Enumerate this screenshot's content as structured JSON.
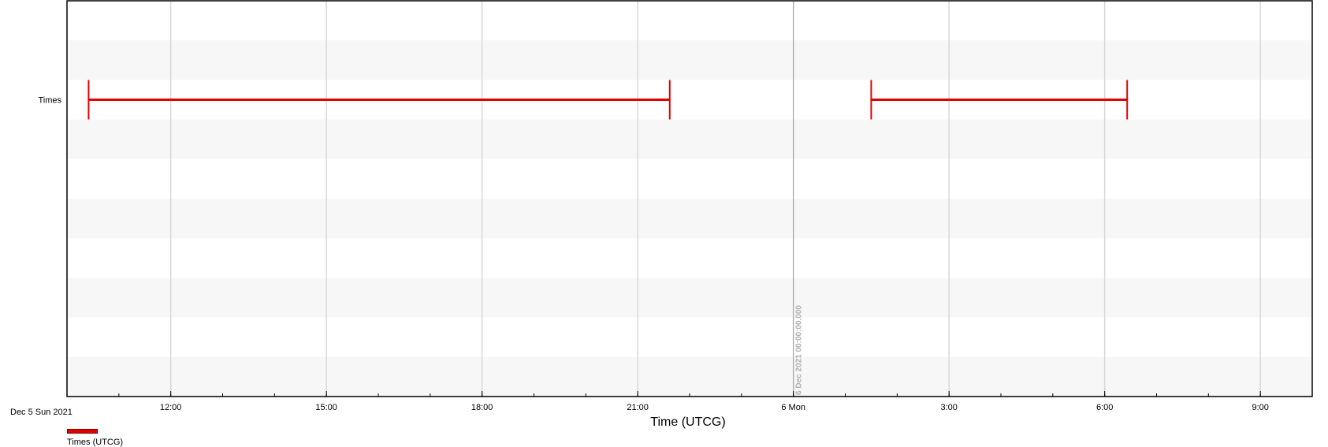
{
  "chart_data": {
    "type": "gantt",
    "xlabel": "Time (UTCG)",
    "start_date_label": "Dec 5 Sun 2021",
    "x_range": [
      "2021-12-05T10:00:00",
      "2021-12-06T10:00:00"
    ],
    "rows": [
      "Times"
    ],
    "intervals": [
      {
        "row": "Times",
        "start": "2021-12-05T10:25:00",
        "end": "2021-12-05T21:37:00"
      },
      {
        "row": "Times",
        "start": "2021-12-06T01:30:00",
        "end": "2021-12-06T06:26:00"
      }
    ],
    "tick_labels": [
      {
        "t": "2021-12-05T12:00:00",
        "label": "12:00"
      },
      {
        "t": "2021-12-05T15:00:00",
        "label": "15:00"
      },
      {
        "t": "2021-12-05T18:00:00",
        "label": "18:00"
      },
      {
        "t": "2021-12-05T21:00:00",
        "label": "21:00"
      },
      {
        "t": "2021-12-06T00:00:00",
        "label": "6 Mon"
      },
      {
        "t": "2021-12-06T03:00:00",
        "label": "3:00"
      },
      {
        "t": "2021-12-06T06:00:00",
        "label": "6:00"
      },
      {
        "t": "2021-12-06T09:00:00",
        "label": "9:00"
      }
    ],
    "marker": {
      "t": "2021-12-06T00:00:00",
      "label": "6 Dec 2021 00:00:00.000"
    },
    "legend": [
      {
        "label": "Times (UTCG)",
        "color": "#e00000"
      }
    ],
    "colors": {
      "interval": "#e00000",
      "band": "#f7f7f7",
      "grid": "#d8d8d8",
      "marker": "#a0a0a0"
    },
    "grid": true
  }
}
